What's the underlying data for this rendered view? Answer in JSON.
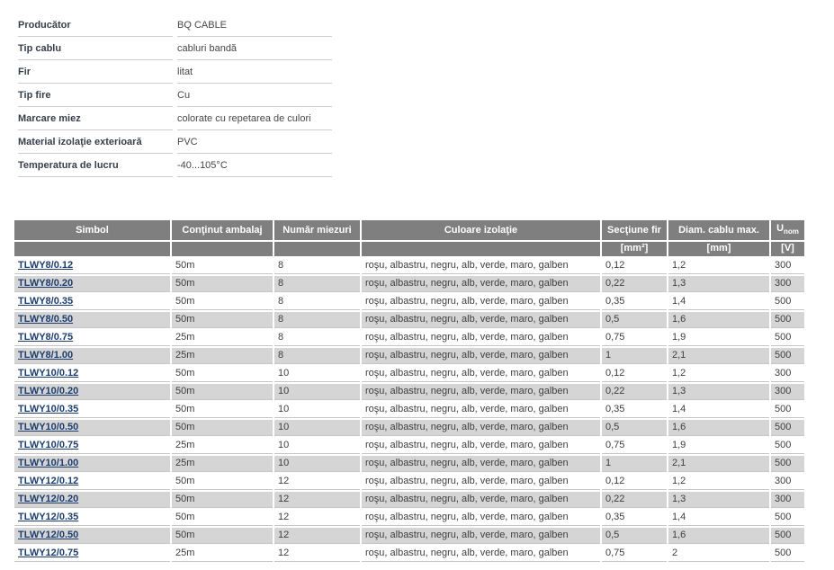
{
  "colors": {
    "page_background": "#ffffff",
    "table_header_bg": "#7f7f7f",
    "table_header_text": "#ffffff",
    "row_alt_bg": "#d5d5d5",
    "row_border": "#c6c6c6",
    "spec_border": "#cccccc",
    "link_color": "#1d3d6e",
    "label_color": "#36404b",
    "body_text": "#3d3d3d"
  },
  "spec_table": {
    "rows": [
      {
        "label": "Producător",
        "value": "BQ CABLE"
      },
      {
        "label": "Tip cablu",
        "value": "cabluri bandă"
      },
      {
        "label": "Fir",
        "value": "litat"
      },
      {
        "label": "Tip fire",
        "value": "Cu"
      },
      {
        "label": "Marcare miez",
        "value": "colorate cu repetarea de culori"
      },
      {
        "label": "Material izolaţie exterioară",
        "value": "PVC"
      },
      {
        "label": "Temperatura de lucru",
        "value": "-40...105°C"
      }
    ]
  },
  "product_table": {
    "headers": [
      "Simbol",
      "Conţinut ambalaj",
      "Număr miezuri",
      "Culoare izolaţie",
      "Secţiune fir",
      "Diam. cablu max."
    ],
    "unom": {
      "base": "U",
      "sub": "nom"
    },
    "units": [
      "",
      "",
      "",
      "",
      "[mm²]",
      "[mm]",
      "[V]"
    ],
    "rows": [
      [
        "TLWY8/0.12",
        "50m",
        "8",
        "roşu, albastru, negru, alb, verde, maro, galben",
        "0,12",
        "1,2",
        "300"
      ],
      [
        "TLWY8/0.20",
        "50m",
        "8",
        "roşu, albastru, negru, alb, verde, maro, galben",
        "0,22",
        "1,3",
        "300"
      ],
      [
        "TLWY8/0.35",
        "50m",
        "8",
        "roşu, albastru, negru, alb, verde, maro, galben",
        "0,35",
        "1,4",
        "500"
      ],
      [
        "TLWY8/0.50",
        "50m",
        "8",
        "roşu, albastru, negru, alb, verde, maro, galben",
        "0,5",
        "1,6",
        "500"
      ],
      [
        "TLWY8/0.75",
        "25m",
        "8",
        "roşu, albastru, negru, alb, verde, maro, galben",
        "0,75",
        "1,9",
        "500"
      ],
      [
        "TLWY8/1.00",
        "25m",
        "8",
        "roşu, albastru, negru, alb, verde, maro, galben",
        "1",
        "2,1",
        "500"
      ],
      [
        "TLWY10/0.12",
        "50m",
        "10",
        "roşu, albastru, negru, alb, verde, maro, galben",
        "0,12",
        "1,2",
        "300"
      ],
      [
        "TLWY10/0.20",
        "50m",
        "10",
        "roşu, albastru, negru, alb, verde, maro, galben",
        "0,22",
        "1,3",
        "300"
      ],
      [
        "TLWY10/0.35",
        "50m",
        "10",
        "roşu, albastru, negru, alb, verde, maro, galben",
        "0,35",
        "1,4",
        "500"
      ],
      [
        "TLWY10/0.50",
        "50m",
        "10",
        "roşu, albastru, negru, alb, verde, maro, galben",
        "0,5",
        "1,6",
        "500"
      ],
      [
        "TLWY10/0.75",
        "25m",
        "10",
        "roşu, albastru, negru, alb, verde, maro, galben",
        "0,75",
        "1,9",
        "500"
      ],
      [
        "TLWY10/1.00",
        "25m",
        "10",
        "roşu, albastru, negru, alb, verde, maro, galben",
        "1",
        "2,1",
        "500"
      ],
      [
        "TLWY12/0.12",
        "50m",
        "12",
        "roşu, albastru, negru, alb, verde, maro, galben",
        "0,12",
        "1,2",
        "300"
      ],
      [
        "TLWY12/0.20",
        "50m",
        "12",
        "roşu, albastru, negru, alb, verde, maro, galben",
        "0,22",
        "1,3",
        "300"
      ],
      [
        "TLWY12/0.35",
        "50m",
        "12",
        "roşu, albastru, negru, alb, verde, maro, galben",
        "0,35",
        "1,4",
        "500"
      ],
      [
        "TLWY12/0.50",
        "50m",
        "12",
        "roşu, albastru, negru, alb, verde, maro, galben",
        "0,5",
        "1,6",
        "500"
      ],
      [
        "TLWY12/0.75",
        "25m",
        "12",
        "roşu, albastru, negru, alb, verde, maro, galben",
        "0,75",
        "2",
        "500"
      ]
    ]
  }
}
